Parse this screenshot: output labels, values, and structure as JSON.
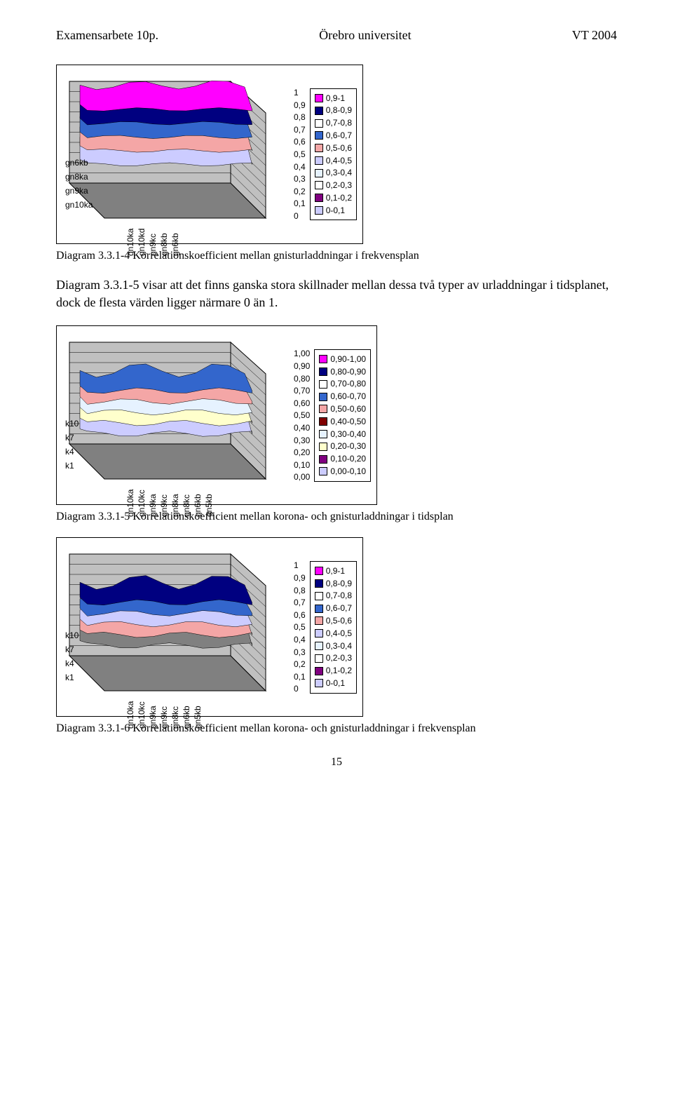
{
  "header": {
    "left": "Examensarbete 10p.",
    "center": "Örebro universitet",
    "right": "VT 2004"
  },
  "page_number": "15",
  "captions": {
    "fig1": "Diagram 3.3.1-4 Korrelationskoefficient mellan gnisturladdningar i frekvensplan",
    "fig2": "Diagram 3.3.1-5  Korrelationskoefficient mellan korona- och gnisturladdningar i tidsplan",
    "fig3": "Diagram 3.3.1-6  Korrelationskoefficient mellan korona- och gnisturladdningar i frekvensplan"
  },
  "body_text": "Diagram 3.3.1-5 visar att det finns ganska stora skillnader mellan dessa två typer av urladdningar i tidsplanet, dock de flesta värden ligger närmare 0 än 1.",
  "chart1": {
    "type": "surface-3d",
    "floor_color": "#808080",
    "wall_color": "#c0c0c0",
    "x_categories": [
      "gn10ka",
      "gn10kd",
      "gn9kc",
      "gn8kb",
      "gn6kb"
    ],
    "y_categories": [
      "gn6kb",
      "gn8ka",
      "gn9ka",
      "gn10ka"
    ],
    "z_ticks": [
      "1",
      "0,9",
      "0,8",
      "0,7",
      "0,6",
      "0,5",
      "0,4",
      "0,3",
      "0,2",
      "0,1",
      "0"
    ],
    "zlim": [
      0,
      1
    ],
    "legend": [
      {
        "label": "0,9-1",
        "fill": "#ff00ff"
      },
      {
        "label": "0,8-0,9",
        "fill": "#000080"
      },
      {
        "label": "0,7-0,8",
        "fill": "#ffffff"
      },
      {
        "label": "0,6-0,7",
        "fill": "#3366cc"
      },
      {
        "label": "0,5-0,6",
        "fill": "#f4a6a6"
      },
      {
        "label": "0,4-0,5",
        "fill": "#ccccff"
      },
      {
        "label": "0,3-0,4",
        "fill": "#e6f2ff"
      },
      {
        "label": "0,2-0,3",
        "fill": "#ffffff"
      },
      {
        "label": "0,1-0,2",
        "fill": "#800080"
      },
      {
        "label": "0-0,1",
        "fill": "#ccccff"
      }
    ],
    "dominant_top_color": "#ff00ff",
    "mid_colors": [
      "#000080",
      "#3366cc",
      "#f4a6a6",
      "#ccccff"
    ]
  },
  "chart2": {
    "type": "surface-3d",
    "floor_color": "#808080",
    "wall_color": "#c0c0c0",
    "x_categories": [
      "gn10ka",
      "gn10kc",
      "gn9ka",
      "gn9kc",
      "gn8ka",
      "gn8kc",
      "gn6kb",
      "gn5kb"
    ],
    "y_categories": [
      "k10",
      "k7",
      "k4",
      "k1"
    ],
    "z_ticks": [
      "1,00",
      "0,90",
      "0,80",
      "0,70",
      "0,60",
      "0,50",
      "0,40",
      "0,30",
      "0,20",
      "0,10",
      "0,00"
    ],
    "zlim": [
      0,
      1
    ],
    "legend": [
      {
        "label": "0,90-1,00",
        "fill": "#ff00ff"
      },
      {
        "label": "0,80-0,90",
        "fill": "#000080"
      },
      {
        "label": "0,70-0,80",
        "fill": "#ffffff"
      },
      {
        "label": "0,60-0,70",
        "fill": "#3366cc"
      },
      {
        "label": "0,50-0,60",
        "fill": "#f4a6a6"
      },
      {
        "label": "0,40-0,50",
        "fill": "#800000"
      },
      {
        "label": "0,30-0,40",
        "fill": "#e6f2ff"
      },
      {
        "label": "0,20-0,30",
        "fill": "#ffffcc"
      },
      {
        "label": "0,10-0,20",
        "fill": "#800080"
      },
      {
        "label": "0,00-0,10",
        "fill": "#ccccff"
      }
    ],
    "dominant_top_color": "#3366cc",
    "mid_colors": [
      "#f4a6a6",
      "#e6f2ff",
      "#ffffcc",
      "#ccccff"
    ]
  },
  "chart3": {
    "type": "surface-3d",
    "floor_color": "#808080",
    "wall_color": "#c0c0c0",
    "x_categories": [
      "gn10ka",
      "gn10kc",
      "gn9ka",
      "gn9kc",
      "gn8kc",
      "gn6kb",
      "gn5kb"
    ],
    "y_categories": [
      "k10",
      "k7",
      "k4",
      "k1"
    ],
    "z_ticks": [
      "1",
      "0,9",
      "0,8",
      "0,7",
      "0,6",
      "0,5",
      "0,4",
      "0,3",
      "0,2",
      "0,1",
      "0"
    ],
    "zlim": [
      0,
      1
    ],
    "legend": [
      {
        "label": "0,9-1",
        "fill": "#ff00ff"
      },
      {
        "label": "0,8-0,9",
        "fill": "#000080"
      },
      {
        "label": "0,7-0,8",
        "fill": "#ffffff"
      },
      {
        "label": "0,6-0,7",
        "fill": "#3366cc"
      },
      {
        "label": "0,5-0,6",
        "fill": "#f4a6a6"
      },
      {
        "label": "0,4-0,5",
        "fill": "#ccccff"
      },
      {
        "label": "0,3-0,4",
        "fill": "#e6f2ff"
      },
      {
        "label": "0,2-0,3",
        "fill": "#ffffff"
      },
      {
        "label": "0,1-0,2",
        "fill": "#800080"
      },
      {
        "label": "0-0,1",
        "fill": "#ccccff"
      }
    ],
    "dominant_top_color": "#000080",
    "mid_colors": [
      "#3366cc",
      "#ccccff",
      "#f4a6a6",
      "#808080"
    ]
  }
}
